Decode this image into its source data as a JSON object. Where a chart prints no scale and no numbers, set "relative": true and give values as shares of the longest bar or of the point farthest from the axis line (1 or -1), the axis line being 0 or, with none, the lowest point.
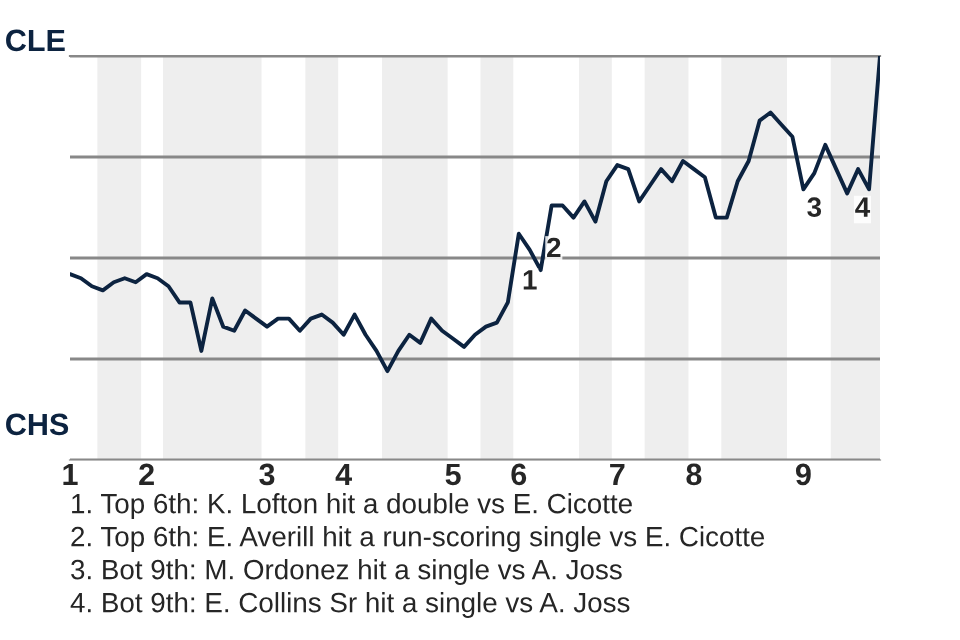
{
  "chart_data": {
    "type": "line",
    "relative": true,
    "categories": [
      "1",
      null,
      null,
      null,
      null,
      null,
      null,
      "2",
      null,
      null,
      null,
      null,
      null,
      null,
      null,
      null,
      null,
      null,
      "3",
      null,
      null,
      null,
      null,
      null,
      null,
      "4",
      null,
      null,
      null,
      null,
      null,
      null,
      null,
      null,
      null,
      "5",
      null,
      null,
      null,
      null,
      null,
      "6",
      null,
      null,
      null,
      null,
      null,
      null,
      null,
      null,
      "7",
      null,
      null,
      null,
      null,
      null,
      null,
      "8",
      null,
      null,
      null,
      null,
      null,
      null,
      null,
      null,
      null,
      "9",
      null,
      null,
      null,
      null,
      null,
      null,
      null
    ],
    "series": [
      {
        "color": "#0c2340",
        "values": [
          0.46,
          0.45,
          0.43,
          0.42,
          0.44,
          0.45,
          0.44,
          0.46,
          0.45,
          0.43,
          0.39,
          0.39,
          0.27,
          0.4,
          0.33,
          0.32,
          0.37,
          0.35,
          0.33,
          0.35,
          0.35,
          0.32,
          0.35,
          0.36,
          0.34,
          0.31,
          0.36,
          0.31,
          0.27,
          0.22,
          0.27,
          0.31,
          0.29,
          0.35,
          0.32,
          0.3,
          0.28,
          0.31,
          0.33,
          0.34,
          0.39,
          0.56,
          0.52,
          0.47,
          0.63,
          0.63,
          0.6,
          0.64,
          0.59,
          0.69,
          0.73,
          0.72,
          0.64,
          0.68,
          0.72,
          0.69,
          0.74,
          0.72,
          0.7,
          0.6,
          0.6,
          0.69,
          0.74,
          0.84,
          0.86,
          0.83,
          0.8,
          0.67,
          0.71,
          0.78,
          0.72,
          0.66,
          0.72,
          0.67,
          1.0
        ]
      }
    ],
    "grid": "y",
    "annotations": [
      "CLE",
      "CHS",
      "1",
      "2",
      "3",
      "4",
      "1. Top 6th: K. Lofton hit a double vs E. Cicotte",
      "2. Top 6th: E. Averill hit a run-scoring single vs E. Cicotte",
      "3. Bot 9th: M. Ordonez hit a single vs A. Joss",
      "4. Bot 9th: E. Collins Sr hit a single vs A. Joss"
    ]
  }
}
